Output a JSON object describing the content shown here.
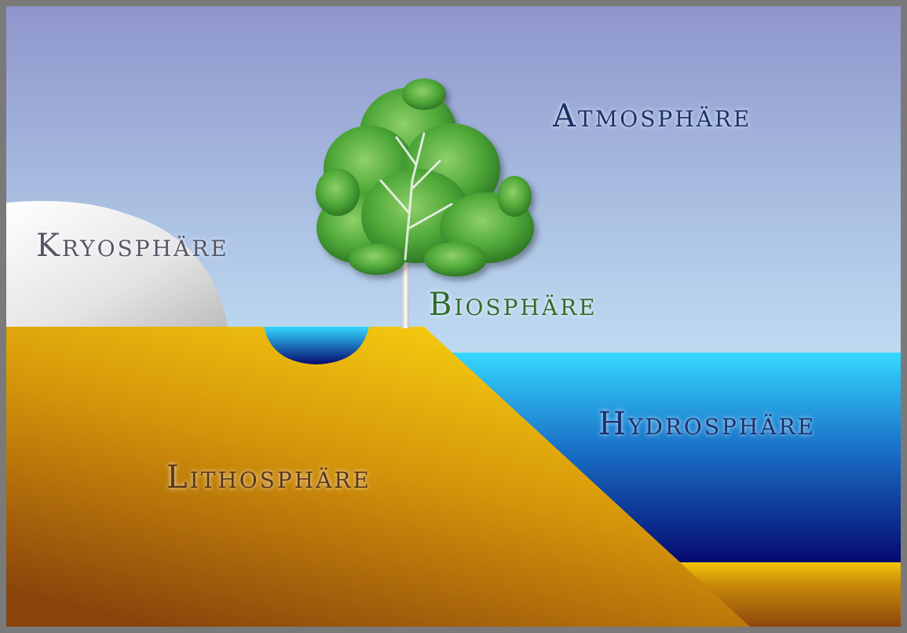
{
  "labels": {
    "atmosphere": "Atmosphäre",
    "cryosphere": "Kryosphäre",
    "biosphere": "Biosphäre",
    "hydrosphere": "Hydrosphäre",
    "lithosphere": "Lithosphäre"
  },
  "colors": {
    "frame": "#7a7a7a",
    "sky_top": "#8f96cc",
    "sky_bottom": "#e6f4fb",
    "ice": "#e4e4e4",
    "land_light": "#f2c10a",
    "land_dark": "#8f4a0c",
    "water_top": "#33d6ff",
    "water_bottom": "#040a6e",
    "tree_leaves": "#4fa838",
    "label_atmosphere": "#16306a",
    "label_cryosphere": "#555566",
    "label_biosphere": "#2f6c2c",
    "label_hydrosphere": "#1b2f70",
    "label_lithosphere": "#5a3414"
  }
}
